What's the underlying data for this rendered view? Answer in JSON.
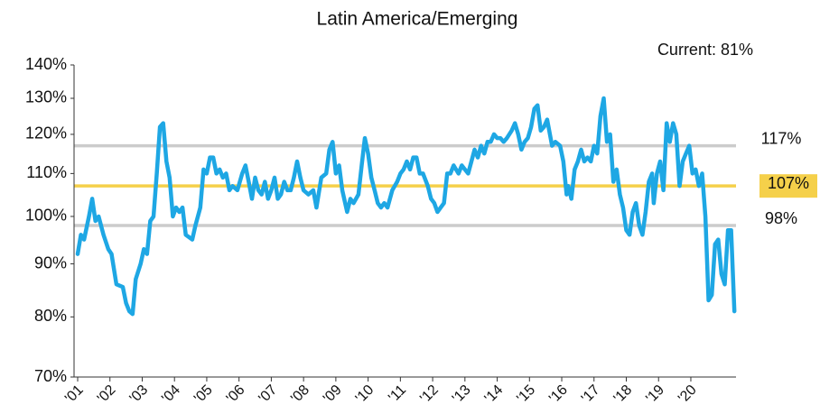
{
  "chart_data": {
    "type": "line",
    "title": "Latin America/Emerging",
    "annotation": "Current: 81%",
    "color": "#1ea7e4",
    "log_scale": true,
    "x": [
      2001.0,
      2001.1,
      2001.2,
      2001.35,
      2001.45,
      2001.55,
      2001.65,
      2001.8,
      2001.95,
      2002.05,
      2002.2,
      2002.4,
      2002.5,
      2002.6,
      2002.7,
      2002.8,
      2002.95,
      2003.05,
      2003.15,
      2003.25,
      2003.35,
      2003.45,
      2003.55,
      2003.65,
      2003.75,
      2003.85,
      2003.95,
      2004.05,
      2004.15,
      2004.25,
      2004.35,
      2004.55,
      2004.65,
      2004.8,
      2004.9,
      2005.0,
      2005.1,
      2005.2,
      2005.3,
      2005.4,
      2005.5,
      2005.6,
      2005.7,
      2005.8,
      2005.95,
      2006.1,
      2006.2,
      2006.3,
      2006.4,
      2006.5,
      2006.6,
      2006.7,
      2006.8,
      2006.9,
      2007.0,
      2007.1,
      2007.2,
      2007.3,
      2007.4,
      2007.5,
      2007.6,
      2007.7,
      2007.8,
      2007.9,
      2008.0,
      2008.15,
      2008.3,
      2008.4,
      2008.55,
      2008.7,
      2008.8,
      2008.9,
      2009.0,
      2009.1,
      2009.2,
      2009.35,
      2009.45,
      2009.55,
      2009.7,
      2009.8,
      2009.9,
      2010.0,
      2010.1,
      2010.2,
      2010.3,
      2010.4,
      2010.5,
      2010.6,
      2010.75,
      2010.9,
      2011.0,
      2011.1,
      2011.2,
      2011.3,
      2011.4,
      2011.5,
      2011.6,
      2011.7,
      2011.85,
      2011.95,
      2012.05,
      2012.15,
      2012.25,
      2012.35,
      2012.45,
      2012.55,
      2012.65,
      2012.8,
      2012.9,
      2013.0,
      2013.1,
      2013.2,
      2013.3,
      2013.4,
      2013.5,
      2013.6,
      2013.7,
      2013.8,
      2013.9,
      2014.0,
      2014.1,
      2014.2,
      2014.3,
      2014.45,
      2014.55,
      2014.65,
      2014.75,
      2014.85,
      2014.95,
      2015.05,
      2015.15,
      2015.25,
      2015.35,
      2015.45,
      2015.55,
      2015.7,
      2015.8,
      2015.95,
      2016.05,
      2016.15,
      2016.2,
      2016.3,
      2016.4,
      2016.5,
      2016.6,
      2016.7,
      2016.8,
      2016.9,
      2017.0,
      2017.1,
      2017.2,
      2017.3,
      2017.4,
      2017.5,
      2017.6,
      2017.7,
      2017.8,
      2017.9,
      2018.0,
      2018.1,
      2018.2,
      2018.3,
      2018.4,
      2018.5,
      2018.6,
      2018.7,
      2018.8,
      2018.85,
      2018.95,
      2019.05,
      2019.15,
      2019.25,
      2019.35,
      2019.45,
      2019.55,
      2019.65,
      2019.75,
      2019.85,
      2019.95,
      2020.05,
      2020.15,
      2020.25,
      2020.35,
      2020.45,
      2020.55,
      2020.65,
      2020.75,
      2020.85,
      2020.95,
      2021.05,
      2021.15,
      2021.25,
      2021.35
    ],
    "values": [
      92,
      96,
      95,
      100,
      104,
      99,
      100,
      96,
      93,
      92,
      86,
      85.5,
      82.5,
      81,
      80.5,
      87,
      90,
      93,
      92,
      99,
      100,
      110,
      122,
      123,
      113,
      109,
      100,
      102,
      101,
      102,
      96,
      95,
      98,
      102,
      111,
      110,
      114,
      114,
      110,
      111,
      109,
      110,
      106,
      107,
      106,
      110,
      112,
      108,
      104,
      109,
      106,
      105,
      108,
      104,
      106,
      109,
      104,
      105,
      108,
      106,
      106,
      109,
      113,
      109,
      106,
      105,
      106,
      102,
      109,
      110,
      116,
      118,
      110,
      112,
      106,
      101,
      104,
      103,
      105,
      112,
      119,
      115,
      109,
      106,
      103,
      102,
      103,
      102,
      106,
      108,
      110,
      111,
      113,
      111,
      114,
      114,
      110,
      110,
      107,
      104,
      103,
      101,
      102,
      103,
      110,
      110,
      112,
      110,
      112,
      111,
      110,
      113,
      116,
      114,
      117,
      115,
      118,
      118,
      120,
      119,
      119,
      118,
      119,
      121,
      123,
      120,
      116,
      118,
      119,
      122,
      127,
      128,
      121,
      122,
      124,
      117,
      118,
      117,
      113,
      105,
      107,
      104,
      111,
      113,
      116,
      113,
      114,
      113,
      117,
      115,
      125,
      130,
      118,
      120,
      108,
      111,
      105,
      102,
      97,
      96,
      101,
      103,
      98,
      96,
      101,
      108,
      110,
      103,
      110,
      113,
      106,
      123,
      118,
      123,
      120,
      107,
      113,
      115,
      117,
      110,
      111,
      107,
      110,
      100,
      83,
      84,
      94,
      95,
      88,
      86,
      97,
      97,
      81
    ],
    "xlim": [
      2001,
      2021.4
    ],
    "ylim": [
      70,
      140
    ],
    "yticks": [
      {
        "value": 70,
        "label": "70%"
      },
      {
        "value": 80,
        "label": "80%"
      },
      {
        "value": 90,
        "label": "90%"
      },
      {
        "value": 100,
        "label": "100%"
      },
      {
        "value": 110,
        "label": "110%"
      },
      {
        "value": 120,
        "label": "120%"
      },
      {
        "value": 130,
        "label": "130%"
      },
      {
        "value": 140,
        "label": "140%"
      }
    ],
    "xticks": [
      {
        "value": 2001,
        "label": "'01"
      },
      {
        "value": 2002,
        "label": "'02"
      },
      {
        "value": 2003,
        "label": "'03"
      },
      {
        "value": 2004,
        "label": "'04"
      },
      {
        "value": 2005,
        "label": "'05"
      },
      {
        "value": 2006,
        "label": "'06"
      },
      {
        "value": 2007,
        "label": "'07"
      },
      {
        "value": 2008,
        "label": "'08"
      },
      {
        "value": 2009,
        "label": "'09"
      },
      {
        "value": 2010,
        "label": "'10"
      },
      {
        "value": 2011,
        "label": "'11"
      },
      {
        "value": 2012,
        "label": "'12"
      },
      {
        "value": 2013,
        "label": "'13"
      },
      {
        "value": 2014,
        "label": "'14"
      },
      {
        "value": 2015,
        "label": "'15"
      },
      {
        "value": 2016,
        "label": "'16"
      },
      {
        "value": 2017,
        "label": "'17"
      },
      {
        "value": 2018,
        "label": "'18"
      },
      {
        "value": 2019,
        "label": "'19"
      },
      {
        "value": 2020,
        "label": "'20"
      }
    ],
    "reference_lines": [
      {
        "value": 117,
        "label": "117%",
        "color": "#cccccc"
      },
      {
        "value": 107,
        "label": "107%",
        "color": "#f5d04a",
        "highlight": true
      },
      {
        "value": 98,
        "label": "98%",
        "color": "#cccccc"
      }
    ]
  }
}
